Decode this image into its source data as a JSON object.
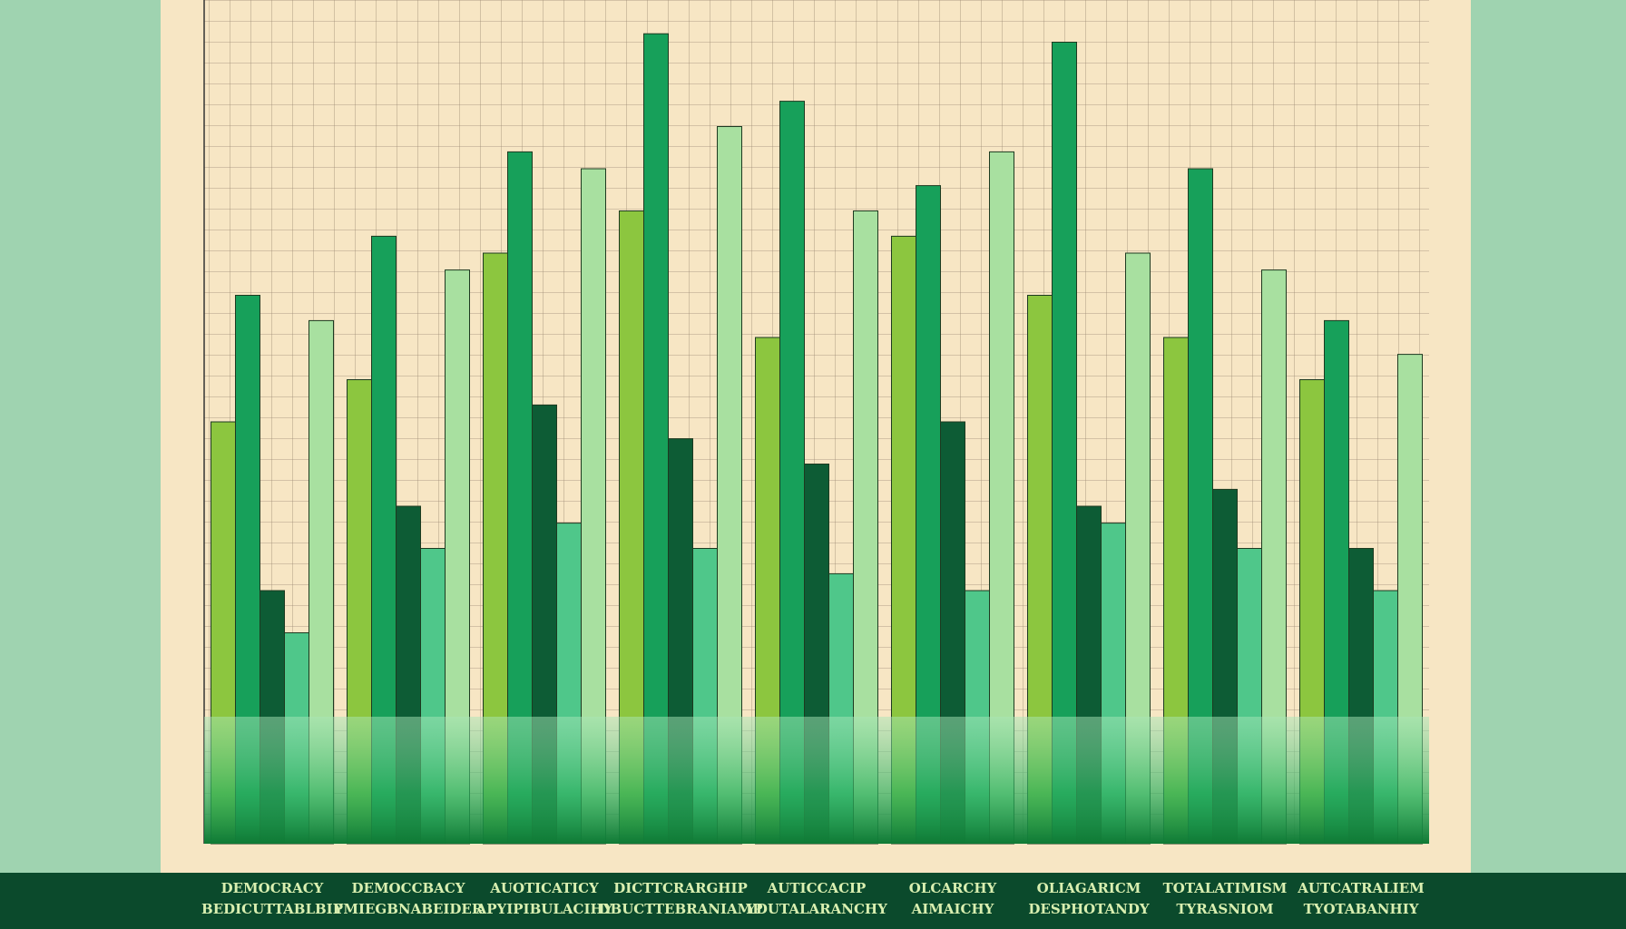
{
  "chart_data": {
    "type": "bar",
    "categories": [
      "DEMOCRACY",
      "DEMOCCBACY",
      "AUOTICATICY",
      "DICTTCRARGHIP",
      "AUTICCACIP",
      "OLCARCHY",
      "OLIAGARICM",
      "TOTALATIMISM",
      "AUTCATRALIEM"
    ],
    "category_sublabels": [
      "BEDICUTTABLBIP",
      "YMIEGBNABEIDER",
      "APYIPIBULACIHY",
      "DBUCTTEBRANIAMP",
      "YDUTALARANCHY",
      "AIMAICHY",
      "DESPHOTANDY",
      "TYRASNIOM",
      "TYOTABANHIY"
    ],
    "series": [
      {
        "color": "#8cc63f",
        "values": [
          50,
          55,
          70,
          75,
          60,
          72,
          65,
          60,
          55
        ]
      },
      {
        "color": "#17a05a",
        "values": [
          65,
          72,
          82,
          96,
          88,
          78,
          95,
          80,
          62
        ]
      },
      {
        "color": "#0d5c35",
        "values": [
          30,
          40,
          52,
          48,
          45,
          50,
          40,
          42,
          35
        ]
      },
      {
        "color": "#4fc78a",
        "values": [
          25,
          35,
          38,
          35,
          32,
          30,
          38,
          35,
          30
        ]
      },
      {
        "color": "#a8e0a0",
        "values": [
          62,
          68,
          80,
          85,
          75,
          82,
          70,
          68,
          58
        ]
      }
    ],
    "ylim": [
      0,
      100
    ]
  }
}
